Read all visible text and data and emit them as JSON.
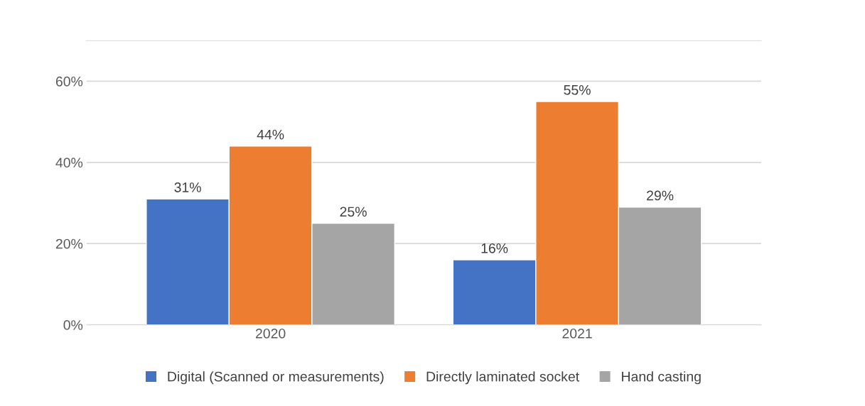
{
  "chart_data": {
    "type": "bar",
    "categories": [
      "2020",
      "2021"
    ],
    "series": [
      {
        "name": "Digital (Scanned or measurements)",
        "color": "#4472c4",
        "values": [
          31,
          16
        ],
        "value_labels": [
          "31%",
          "16%"
        ]
      },
      {
        "name": "Directly laminated socket",
        "color": "#ed7d31",
        "values": [
          44,
          55
        ],
        "value_labels": [
          "44%",
          "55%"
        ]
      },
      {
        "name": "Hand casting",
        "color": "#a5a5a5",
        "values": [
          25,
          29
        ],
        "value_labels": [
          "25%",
          "29%"
        ]
      }
    ],
    "ylim": [
      0,
      70
    ],
    "yticks": [
      {
        "value": 0,
        "label": "0%"
      },
      {
        "value": 20,
        "label": "20%"
      },
      {
        "value": 40,
        "label": "40%"
      },
      {
        "value": 60,
        "label": "60%"
      }
    ],
    "grid": "y",
    "legend": "bottom"
  }
}
